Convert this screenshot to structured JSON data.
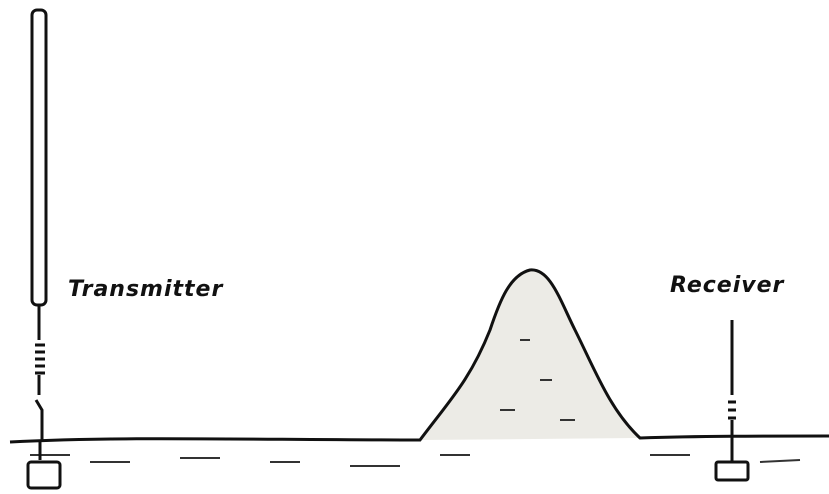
{
  "labels": {
    "transmitter": "Transmitter",
    "receiver": "Receiver"
  }
}
